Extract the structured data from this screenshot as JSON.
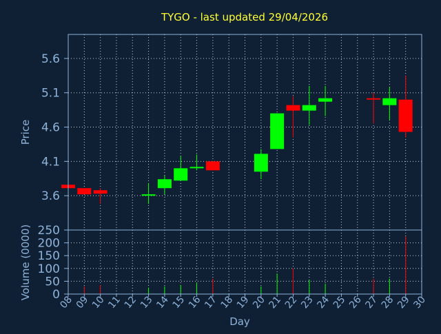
{
  "chart_data": {
    "type": "candlestick",
    "title": "TYGO - last updated 29/04/2026",
    "xlabel": "Day",
    "ylabel_price": "Price",
    "ylabel_volume": "Volume (0000)",
    "grid": true,
    "price_ylim": [
      3.1,
      5.95
    ],
    "price_ticks": [
      "3.6",
      "4.1",
      "4.6",
      "5.1",
      "5.6"
    ],
    "volume_ylim": [
      0,
      250
    ],
    "volume_ticks": [
      "0",
      "50",
      "100",
      "150",
      "200",
      "250"
    ],
    "x_ticks": [
      "08",
      "09",
      "10",
      "11",
      "12",
      "13",
      "14",
      "15",
      "16",
      "17",
      "18",
      "19",
      "20",
      "21",
      "22",
      "23",
      "24",
      "25",
      "26",
      "27",
      "28",
      "29",
      "30"
    ],
    "candles": [
      {
        "day": "08",
        "open": 3.76,
        "high": 3.76,
        "low": 3.71,
        "close": 3.71,
        "volume": 0
      },
      {
        "day": "09",
        "open": 3.71,
        "high": 3.71,
        "low": 3.62,
        "close": 3.62,
        "volume": 30
      },
      {
        "day": "10",
        "open": 3.68,
        "high": 3.71,
        "low": 3.48,
        "close": 3.63,
        "volume": 35
      },
      {
        "day": "13",
        "open": 3.62,
        "high": 3.78,
        "low": 3.48,
        "close": 3.62,
        "volume": 25
      },
      {
        "day": "14",
        "open": 3.71,
        "high": 3.89,
        "low": 3.62,
        "close": 3.84,
        "volume": 30
      },
      {
        "day": "15",
        "open": 3.82,
        "high": 4.18,
        "low": 3.82,
        "close": 4.0,
        "volume": 35
      },
      {
        "day": "16",
        "open": 4.0,
        "high": 4.2,
        "low": 3.97,
        "close": 4.02,
        "volume": 45
      },
      {
        "day": "17",
        "open": 4.1,
        "high": 4.1,
        "low": 3.97,
        "close": 3.97,
        "volume": 60
      },
      {
        "day": "20",
        "open": 3.95,
        "high": 4.28,
        "low": 3.84,
        "close": 4.21,
        "volume": 30
      },
      {
        "day": "21",
        "open": 4.28,
        "high": 4.8,
        "low": 4.28,
        "close": 4.8,
        "volume": 80
      },
      {
        "day": "22",
        "open": 4.92,
        "high": 5.05,
        "low": 4.45,
        "close": 4.84,
        "volume": 100
      },
      {
        "day": "23",
        "open": 4.84,
        "high": 5.2,
        "low": 4.63,
        "close": 4.92,
        "volume": 55
      },
      {
        "day": "24",
        "open": 4.97,
        "high": 5.2,
        "low": 4.76,
        "close": 5.02,
        "volume": 40
      },
      {
        "day": "27",
        "open": 5.02,
        "high": 5.1,
        "low": 4.65,
        "close": 5.0,
        "volume": 60
      },
      {
        "day": "28",
        "open": 4.92,
        "high": 5.18,
        "low": 4.7,
        "close": 5.02,
        "volume": 60
      },
      {
        "day": "29",
        "open": 5.0,
        "high": 5.35,
        "low": 4.45,
        "close": 4.53,
        "volume": 225
      }
    ],
    "colors": {
      "background": "#0f2035",
      "plot_background": "#0f2035",
      "grid": "#ffffff",
      "axis": "#8fb3d9",
      "up": "#00ff00",
      "down": "#ff0000",
      "title": "#ffff33"
    }
  }
}
